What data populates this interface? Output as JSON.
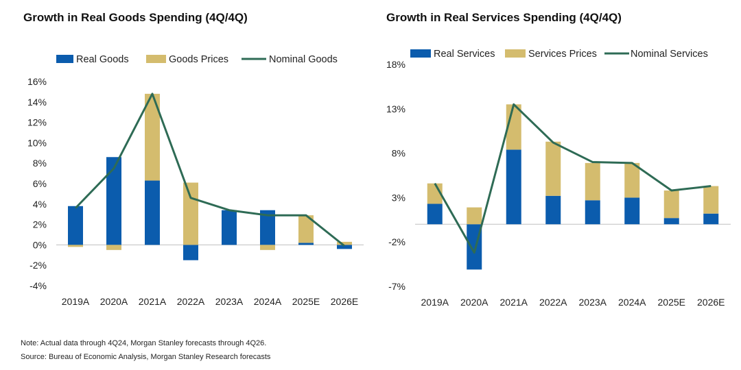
{
  "colors": {
    "real": "#0b5cad",
    "prices": "#d4bc6e",
    "nominal": "#2e6b55",
    "axis": "#bfbfbf"
  },
  "notes": {
    "line1": "Note: Actual data through 4Q24, Morgan Stanley forecasts through 4Q26.",
    "line2": "Source: Bureau of Economic Analysis, Morgan Stanley Research forecasts"
  },
  "chart_data": [
    {
      "type": "bar",
      "stacked": true,
      "title": "Growth in Real Goods Spending (4Q/4Q)",
      "categories": [
        "2019A",
        "2020A",
        "2021A",
        "2022A",
        "2023A",
        "2024A",
        "2025E",
        "2026E"
      ],
      "y_ticks": [
        -4,
        -2,
        0,
        2,
        4,
        6,
        8,
        10,
        12,
        14,
        16
      ],
      "y_tick_labels": [
        "-4%",
        "-2%",
        "0%",
        "2%",
        "4%",
        "6%",
        "8%",
        "10%",
        "12%",
        "14%",
        "16%"
      ],
      "ylim": [
        -4,
        16
      ],
      "legend_position": "top",
      "series": [
        {
          "name": "Real Goods",
          "type": "bar",
          "values": [
            3.8,
            8.6,
            6.3,
            -1.5,
            3.4,
            3.4,
            0.2,
            -0.4
          ]
        },
        {
          "name": "Goods Prices",
          "type": "bar",
          "values": [
            -0.2,
            -0.5,
            8.5,
            6.1,
            0,
            -0.5,
            2.7,
            0.3
          ]
        },
        {
          "name": "Nominal Goods",
          "type": "line",
          "values": [
            3.6,
            7.5,
            14.8,
            4.6,
            3.4,
            2.9,
            2.9,
            -0.1
          ]
        }
      ]
    },
    {
      "type": "bar",
      "stacked": true,
      "title": "Growth in Real Services Spending (4Q/4Q)",
      "categories": [
        "2019A",
        "2020A",
        "2021A",
        "2022A",
        "2023A",
        "2024A",
        "2025E",
        "2026E"
      ],
      "y_ticks": [
        -7,
        -2,
        3,
        8,
        13,
        18
      ],
      "y_tick_labels": [
        "-7%",
        "-2%",
        "3%",
        "8%",
        "13%",
        "18%"
      ],
      "ylim": [
        -7,
        18
      ],
      "legend_position": "top",
      "series": [
        {
          "name": "Real Services",
          "type": "bar",
          "values": [
            2.3,
            -5.1,
            8.4,
            3.2,
            2.7,
            3.0,
            0.7,
            1.2
          ]
        },
        {
          "name": "Services Prices",
          "type": "bar",
          "values": [
            2.3,
            1.9,
            5.1,
            6.1,
            4.2,
            3.9,
            3.1,
            3.1
          ]
        },
        {
          "name": "Nominal Services",
          "type": "line",
          "values": [
            4.6,
            -3.2,
            13.5,
            9.2,
            7.0,
            6.9,
            3.8,
            4.3
          ]
        }
      ]
    }
  ]
}
